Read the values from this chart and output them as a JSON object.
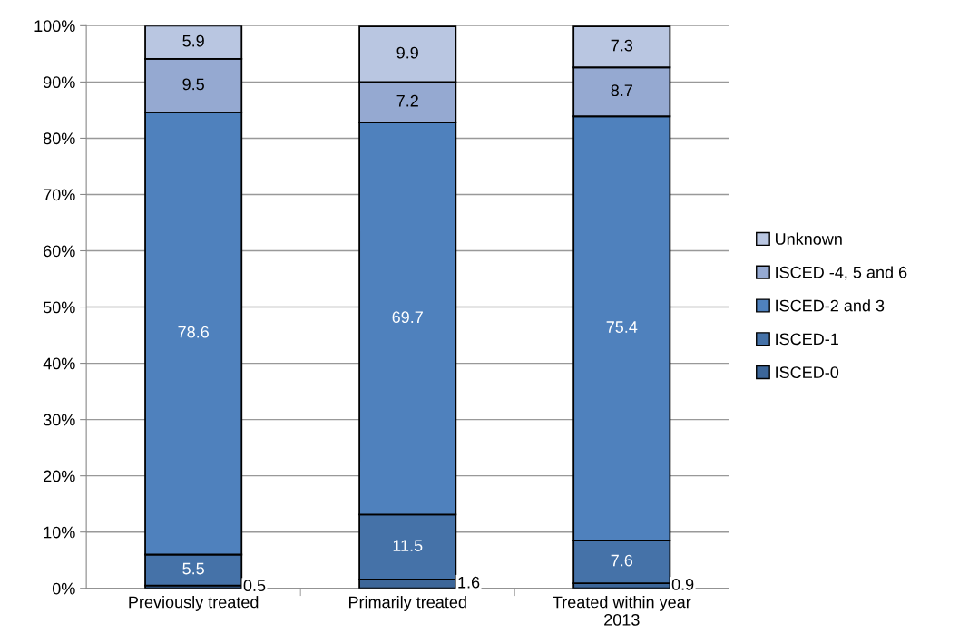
{
  "chart_data": {
    "type": "bar",
    "stacked": true,
    "categories": [
      "Previously treated",
      "Primarily treated",
      "Treated within year 2013"
    ],
    "series": [
      {
        "name": "ISCED-0",
        "color": "#3c6699",
        "values": [
          0.5,
          1.6,
          0.9
        ]
      },
      {
        "name": "ISCED-1",
        "color": "#4572a8",
        "values": [
          5.5,
          11.5,
          7.6
        ]
      },
      {
        "name": "ISCED-2 and 3",
        "color": "#4f81bd",
        "values": [
          78.6,
          69.7,
          75.4
        ]
      },
      {
        "name": "ISCED -4, 5 and 6",
        "color": "#95a9d1",
        "values": [
          9.5,
          7.2,
          8.7
        ]
      },
      {
        "name": "Unknown",
        "color": "#b9c6e1",
        "values": [
          5.9,
          9.9,
          7.3
        ]
      }
    ],
    "ylim": [
      0,
      100
    ],
    "yticks": [
      {
        "value": 0,
        "label": "0%"
      },
      {
        "value": 10,
        "label": "10%"
      },
      {
        "value": 20,
        "label": "20%"
      },
      {
        "value": 30,
        "label": "30%"
      },
      {
        "value": 40,
        "label": "40%"
      },
      {
        "value": 50,
        "label": "50%"
      },
      {
        "value": 60,
        "label": "60%"
      },
      {
        "value": 70,
        "label": "70%"
      },
      {
        "value": 80,
        "label": "80%"
      },
      {
        "value": 90,
        "label": "90%"
      },
      {
        "value": 100,
        "label": "100%"
      }
    ],
    "grid": "y",
    "legend": "right",
    "data_labels": true
  }
}
